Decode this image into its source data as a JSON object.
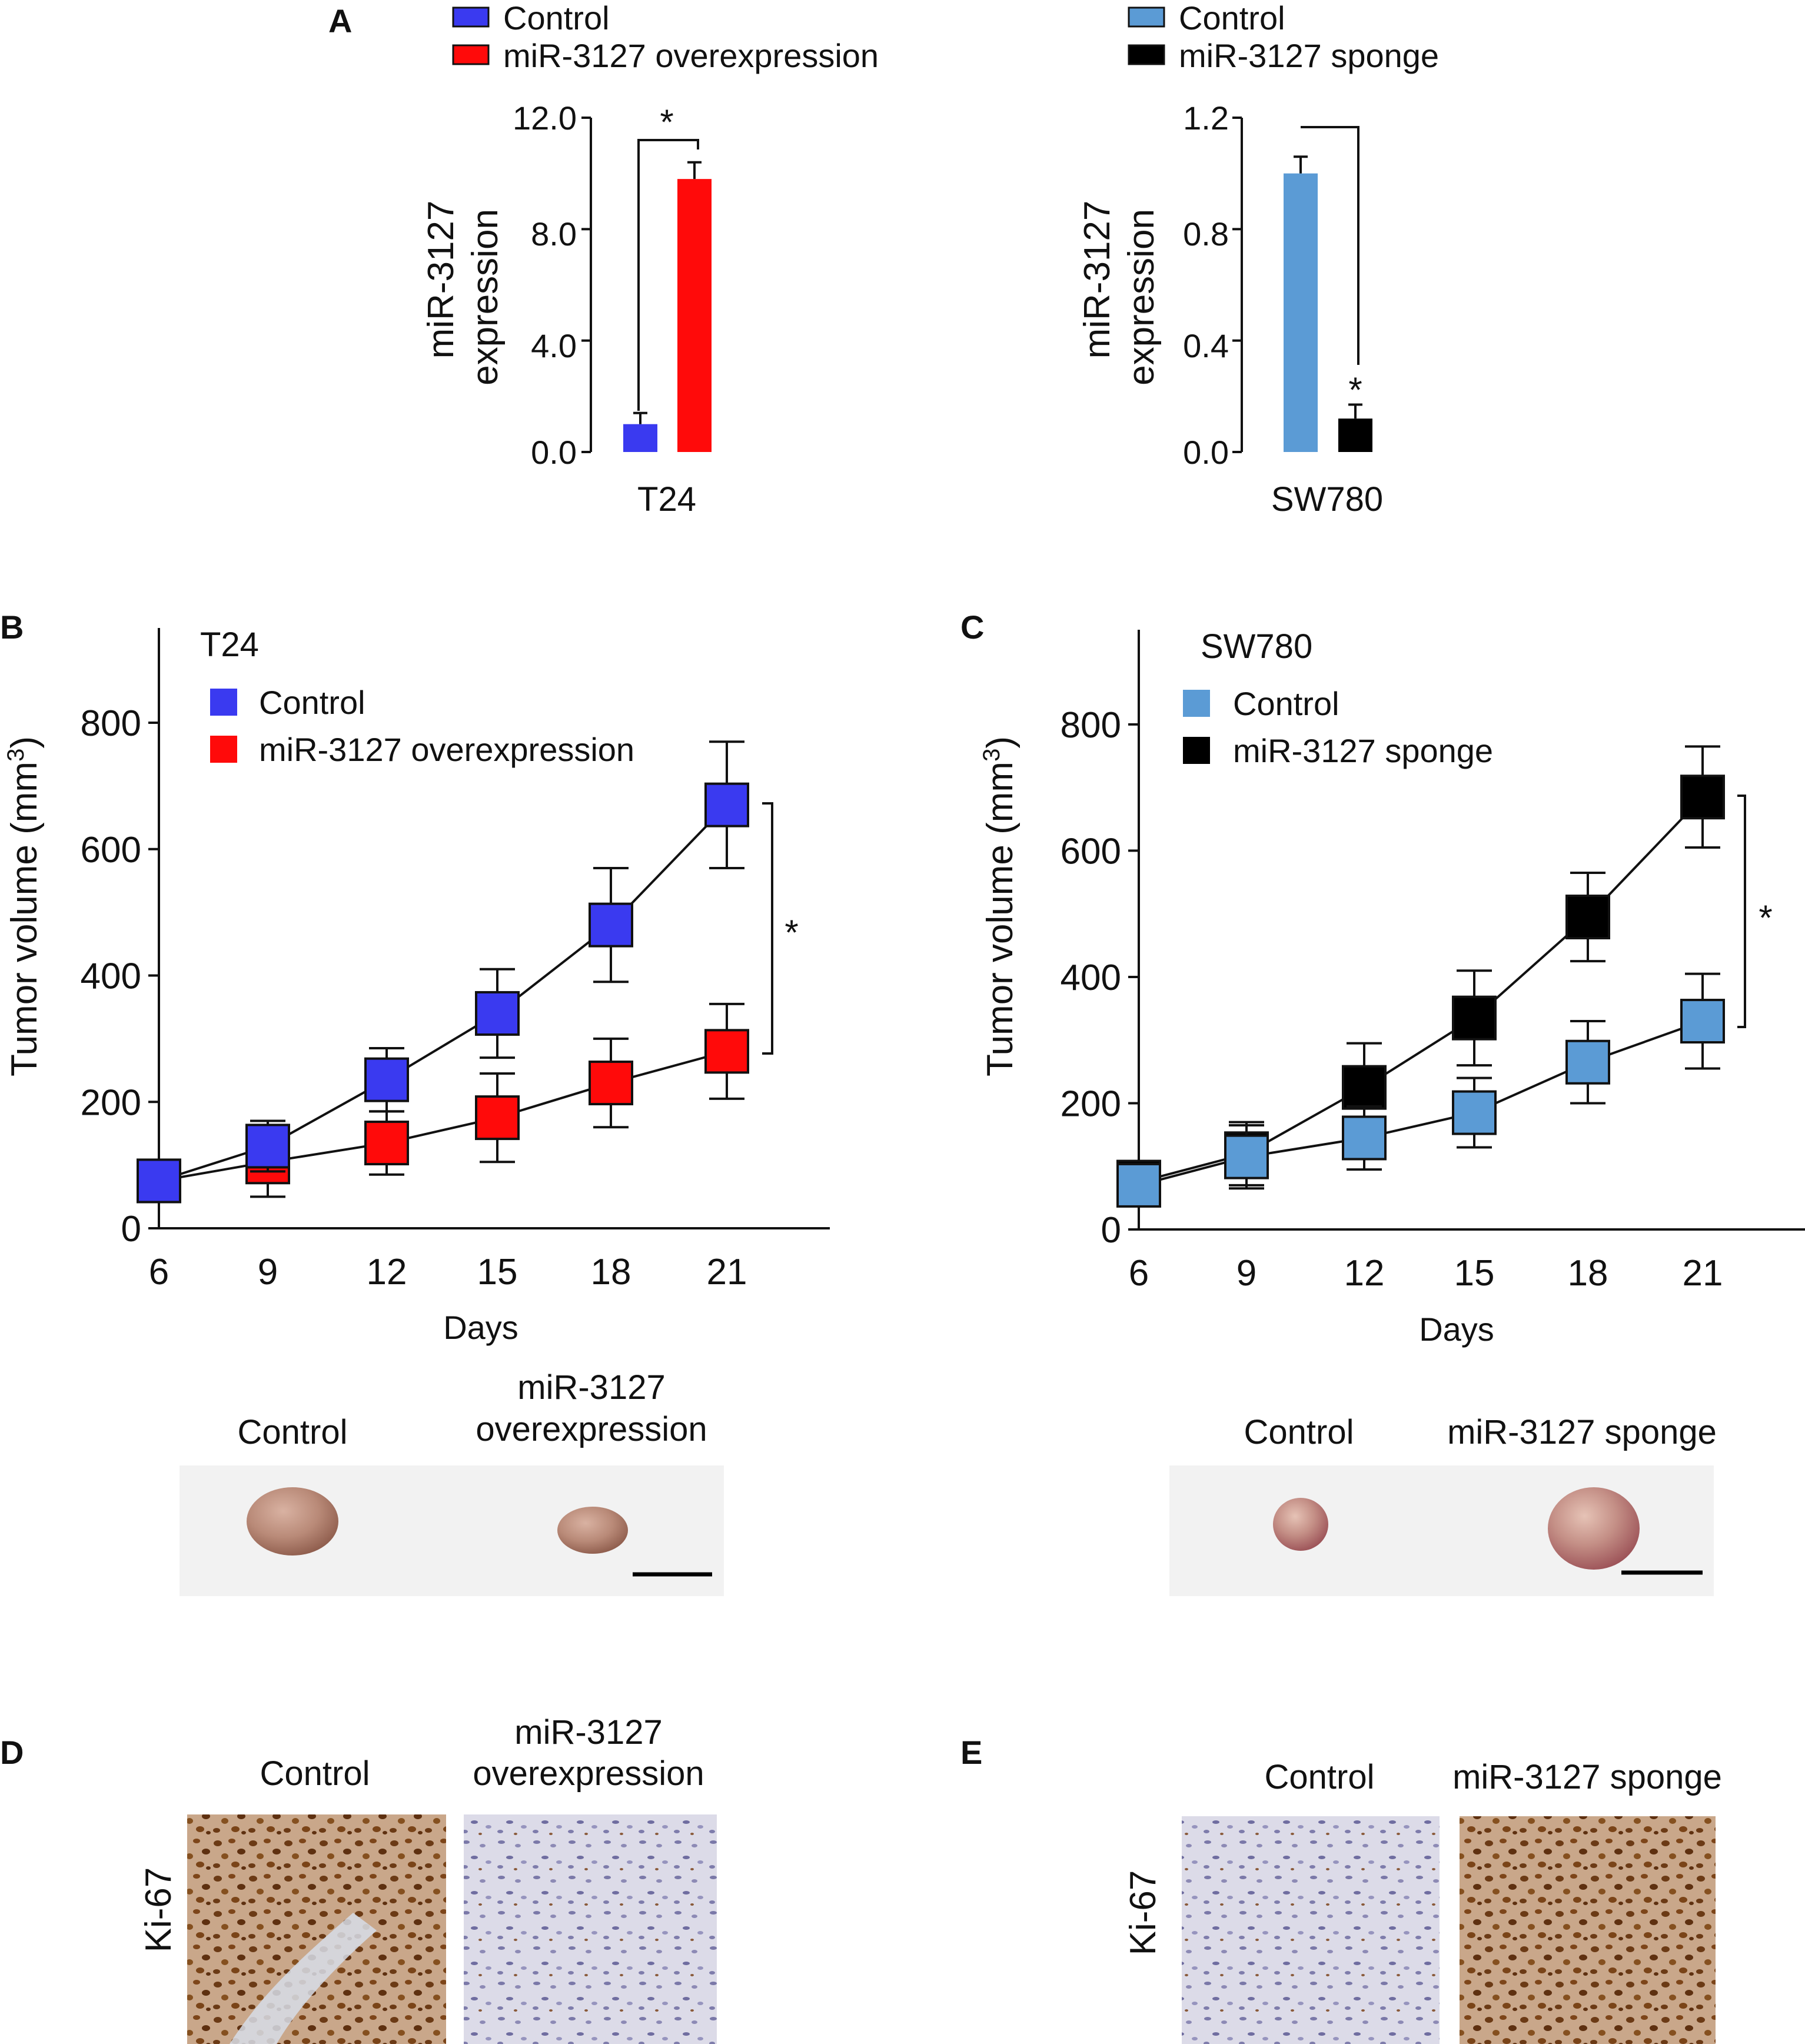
{
  "colors": {
    "control_blue": "#3a3af0",
    "overexpression_red": "#ff0a0a",
    "sponge_control_lightblue": "#5b9bd5",
    "sponge_black": "#000000",
    "photo_bg": "#f2f2f2",
    "tumor": "#b98a78"
  },
  "panels": {
    "A": "A",
    "B": "B",
    "C": "C",
    "D": "D",
    "E": "E"
  },
  "chart_data": [
    {
      "id": "A-T24",
      "type": "bar",
      "legend": [
        "Control",
        "miR-3127 overexpression"
      ],
      "categories": [
        "Control",
        "miR-3127 overexpression"
      ],
      "values": [
        1.0,
        9.8
      ],
      "errors": [
        0.4,
        0.6
      ],
      "colors": [
        "#3a3af0",
        "#ff0a0a"
      ],
      "ylabel_line1": "miR-3127",
      "ylabel_line2": "expression",
      "yticks": [
        "0.0",
        "4.0",
        "8.0",
        "12.0"
      ],
      "ytick_values": [
        0,
        4,
        8,
        12
      ],
      "ylim": [
        0,
        12
      ],
      "xlabel": "T24",
      "significance": "*"
    },
    {
      "id": "A-SW780",
      "type": "bar",
      "legend": [
        "Control",
        "miR-3127 sponge"
      ],
      "categories": [
        "Control",
        "miR-3127 sponge"
      ],
      "values": [
        1.0,
        0.12
      ],
      "errors": [
        0.06,
        0.05
      ],
      "colors": [
        "#5b9bd5",
        "#000000"
      ],
      "ylabel_line1": "miR-3127",
      "ylabel_line2": "expression",
      "yticks": [
        "0.0",
        "0.4",
        "0.8",
        "1.2"
      ],
      "ytick_values": [
        0,
        0.4,
        0.8,
        1.2
      ],
      "ylim": [
        0,
        1.2
      ],
      "xlabel": "SW780",
      "significance": "*"
    },
    {
      "id": "B",
      "type": "line",
      "title": "T24",
      "x": [
        6,
        9,
        12,
        15,
        18,
        21
      ],
      "xticks": [
        "6",
        "9",
        "12",
        "15",
        "18",
        "21"
      ],
      "series": [
        {
          "name": "Control",
          "color": "#3a3af0",
          "values": [
            75,
            130,
            235,
            340,
            480,
            670
          ],
          "errors": [
            30,
            40,
            50,
            70,
            90,
            100
          ]
        },
        {
          "name": "miR-3127 overexpression",
          "color": "#ff0a0a",
          "values": [
            75,
            105,
            135,
            175,
            230,
            280
          ],
          "errors": [
            30,
            55,
            50,
            70,
            70,
            75
          ]
        }
      ],
      "xlabel": "Days",
      "ylabel": "Tumor volume (mm",
      "ylabel_sup": "3",
      "ylabel_close": ")",
      "yticks": [
        "0",
        "200",
        "400",
        "600",
        "800"
      ],
      "ytick_values": [
        0,
        200,
        400,
        600,
        800
      ],
      "ylim": [
        0,
        950
      ],
      "significance": "*",
      "draw_order": [
        1,
        0
      ]
    },
    {
      "id": "C",
      "type": "line",
      "title": "SW780",
      "x": [
        6,
        9,
        12,
        15,
        18,
        21
      ],
      "xticks": [
        "6",
        "9",
        "12",
        "15",
        "18",
        "21"
      ],
      "series": [
        {
          "name": "Control",
          "color": "#5b9bd5",
          "values": [
            70,
            115,
            145,
            185,
            265,
            330
          ],
          "errors": [
            25,
            50,
            50,
            55,
            65,
            75
          ]
        },
        {
          "name": "miR-3127 sponge",
          "color": "#000000",
          "values": [
            75,
            120,
            225,
            335,
            495,
            685
          ],
          "errors": [
            25,
            50,
            70,
            75,
            70,
            80
          ]
        }
      ],
      "xlabel": "Days",
      "ylabel": "Tumor volume (mm",
      "ylabel_sup": "3",
      "ylabel_close": ")",
      "yticks": [
        "0",
        "200",
        "400",
        "600",
        "800"
      ],
      "ytick_values": [
        0,
        200,
        400,
        600,
        800
      ],
      "ylim": [
        0,
        950
      ],
      "significance": "*",
      "draw_order": [
        1,
        0
      ]
    }
  ],
  "tumor_photos": {
    "left": {
      "label_control": "Control",
      "label_treat_line1": "miR-3127",
      "label_treat_line2": "overexpression"
    },
    "right": {
      "label_control": "Control",
      "label_treat": "miR-3127 sponge"
    }
  },
  "ihc": {
    "left": {
      "stain": "Ki-67",
      "label_control": "Control",
      "label_treat_line1": "miR-3127",
      "label_treat_line2": "overexpression"
    },
    "right": {
      "stain": "Ki-67",
      "label_control": "Control",
      "label_treat": "miR-3127 sponge"
    }
  }
}
